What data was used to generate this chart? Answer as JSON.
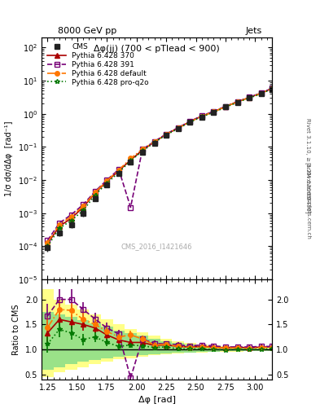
{
  "title_top": "8000 GeV pp",
  "title_right": "Jets",
  "plot_title": "Δφ(jj) (700 < pTlead < 900)",
  "watermark": "CMS_2016_I1421646",
  "xlabel": "Δφ [rad]",
  "ylabel_main": "1/σ dσ/dΔφ  [rad⁻¹]",
  "ylabel_ratio": "Ratio to CMS",
  "ylabel_right": "Rivet 3.1.10, ≥ 3.2M events",
  "arxiv": "[arXiv:1306.3436]",
  "mcplots": "mcplots.cern.ch",
  "xlim": [
    1.2,
    3.14159
  ],
  "ylim_main": [
    1e-05,
    200.0
  ],
  "ylim_ratio": [
    0.4,
    2.4
  ],
  "cms_data": {
    "x": [
      1.25,
      1.35,
      1.45,
      1.55,
      1.65,
      1.75,
      1.85,
      1.95,
      2.05,
      2.15,
      2.25,
      2.35,
      2.45,
      2.55,
      2.65,
      2.75,
      2.85,
      2.95,
      3.05,
      3.14
    ],
    "y": [
      9e-05,
      0.00025,
      0.00045,
      0.001,
      0.0028,
      0.007,
      0.016,
      0.035,
      0.07,
      0.13,
      0.22,
      0.35,
      0.55,
      0.8,
      1.1,
      1.6,
      2.2,
      3.0,
      4.0,
      5.5
    ],
    "yerr": [
      2e-05,
      5e-05,
      0.0001,
      0.0002,
      0.0005,
      0.001,
      0.003,
      0.005,
      0.01,
      0.02,
      0.03,
      0.05,
      0.07,
      0.1,
      0.15,
      0.2,
      0.3,
      0.4,
      0.5,
      0.7
    ],
    "color": "#222222",
    "marker": "s",
    "label": "CMS"
  },
  "py370_data": {
    "x": [
      1.25,
      1.35,
      1.45,
      1.55,
      1.65,
      1.75,
      1.85,
      1.95,
      2.05,
      2.15,
      2.25,
      2.35,
      2.45,
      2.55,
      2.65,
      2.75,
      2.85,
      2.95,
      3.05,
      3.14
    ],
    "y": [
      0.00012,
      0.0004,
      0.0007,
      0.0015,
      0.004,
      0.009,
      0.019,
      0.04,
      0.08,
      0.14,
      0.24,
      0.37,
      0.58,
      0.85,
      1.15,
      1.65,
      2.3,
      3.1,
      4.2,
      5.8
    ],
    "color": "#aa0000",
    "linestyle": "-",
    "marker": "^",
    "label": "Pythia 6.428 370"
  },
  "py391_data": {
    "x": [
      1.25,
      1.35,
      1.45,
      1.55,
      1.65,
      1.75,
      1.85,
      1.95,
      2.05,
      2.15,
      2.25,
      2.35,
      2.45,
      2.55,
      2.65,
      2.75,
      2.85,
      2.95,
      3.05,
      3.14
    ],
    "y": [
      0.00015,
      0.0005,
      0.0009,
      0.0018,
      0.0045,
      0.01,
      0.021,
      0.0015,
      0.085,
      0.145,
      0.245,
      0.38,
      0.59,
      0.87,
      1.18,
      1.68,
      2.32,
      3.15,
      4.25,
      5.85
    ],
    "color": "#770077",
    "linestyle": "--",
    "marker": "s",
    "label": "Pythia 6.428 391"
  },
  "pydef_data": {
    "x": [
      1.25,
      1.35,
      1.45,
      1.55,
      1.65,
      1.75,
      1.85,
      1.95,
      2.05,
      2.15,
      2.25,
      2.35,
      2.45,
      2.55,
      2.65,
      2.75,
      2.85,
      2.95,
      3.05,
      3.14
    ],
    "y": [
      0.00013,
      0.00045,
      0.0008,
      0.0016,
      0.0042,
      0.0095,
      0.02,
      0.045,
      0.085,
      0.142,
      0.242,
      0.372,
      0.572,
      0.842,
      1.14,
      1.64,
      2.27,
      3.07,
      4.15,
      5.7
    ],
    "color": "#ff7700",
    "linestyle": "-.",
    "marker": "o",
    "label": "Pythia 6.428 default"
  },
  "pyq2o_data": {
    "x": [
      1.25,
      1.35,
      1.45,
      1.55,
      1.65,
      1.75,
      1.85,
      1.95,
      2.05,
      2.15,
      2.25,
      2.35,
      2.45,
      2.55,
      2.65,
      2.75,
      2.85,
      2.95,
      3.05,
      3.14
    ],
    "y": [
      0.0001,
      0.00035,
      0.0006,
      0.0012,
      0.0035,
      0.008,
      0.017,
      0.038,
      0.075,
      0.135,
      0.23,
      0.355,
      0.555,
      0.81,
      1.1,
      1.58,
      2.2,
      3.0,
      4.0,
      5.6
    ],
    "color": "#007700",
    "linestyle": ":",
    "marker": "*",
    "label": "Pythia 6.428 pro-q2o"
  },
  "ratio_py370": [
    1.33,
    1.6,
    1.55,
    1.5,
    1.43,
    1.29,
    1.19,
    1.14,
    1.14,
    1.08,
    1.09,
    1.06,
    1.05,
    1.06,
    1.05,
    1.03,
    1.05,
    1.03,
    1.05,
    1.05
  ],
  "ratio_py391": [
    1.67,
    2.0,
    2.0,
    1.8,
    1.61,
    1.43,
    1.31,
    0.43,
    1.21,
    1.12,
    1.11,
    1.09,
    1.07,
    1.09,
    1.07,
    1.05,
    1.05,
    1.05,
    1.06,
    1.06
  ],
  "ratio_pydef": [
    1.44,
    1.8,
    1.78,
    1.6,
    1.5,
    1.36,
    1.25,
    1.29,
    1.21,
    1.09,
    1.1,
    1.06,
    1.04,
    1.05,
    1.04,
    1.03,
    1.03,
    1.02,
    1.04,
    1.04
  ],
  "ratio_pyq2o": [
    1.11,
    1.4,
    1.33,
    1.2,
    1.25,
    1.14,
    1.06,
    1.09,
    1.07,
    1.04,
    1.05,
    1.01,
    1.01,
    1.01,
    1.0,
    0.99,
    1.0,
    1.0,
    1.0,
    1.02
  ],
  "band_x_edges": [
    1.2,
    1.3,
    1.4,
    1.5,
    1.6,
    1.7,
    1.8,
    1.9,
    2.0,
    2.1,
    2.2,
    2.3,
    2.4,
    2.5,
    2.6,
    2.7,
    2.8,
    2.9,
    3.0,
    3.14159
  ],
  "band_yellow_lo": [
    0.45,
    0.55,
    0.6,
    0.65,
    0.7,
    0.75,
    0.8,
    0.83,
    0.86,
    0.88,
    0.9,
    0.92,
    0.93,
    0.94,
    0.95,
    0.96,
    0.96,
    0.97,
    0.97,
    0.98
  ],
  "band_yellow_hi": [
    2.2,
    2.0,
    1.9,
    1.8,
    1.7,
    1.6,
    1.5,
    1.4,
    1.35,
    1.28,
    1.22,
    1.17,
    1.13,
    1.1,
    1.08,
    1.06,
    1.05,
    1.04,
    1.03,
    1.02
  ],
  "band_green_lo": [
    0.6,
    0.65,
    0.7,
    0.75,
    0.79,
    0.83,
    0.86,
    0.87,
    0.89,
    0.9,
    0.92,
    0.93,
    0.94,
    0.95,
    0.96,
    0.97,
    0.97,
    0.97,
    0.97,
    0.98
  ],
  "band_green_hi": [
    1.75,
    1.7,
    1.65,
    1.58,
    1.52,
    1.45,
    1.38,
    1.32,
    1.27,
    1.21,
    1.17,
    1.13,
    1.1,
    1.07,
    1.06,
    1.05,
    1.04,
    1.03,
    1.02,
    1.01
  ],
  "ratio_yerr_py370": [
    0.2,
    0.15,
    0.15,
    0.12,
    0.1,
    0.09,
    0.07,
    0.07,
    0.06,
    0.05,
    0.05,
    0.04,
    0.04,
    0.04,
    0.04,
    0.04,
    0.04,
    0.04,
    0.04,
    0.04
  ],
  "ratio_yerr_py391": [
    0.25,
    0.2,
    0.2,
    0.15,
    0.12,
    0.1,
    0.08,
    0.1,
    0.07,
    0.06,
    0.05,
    0.05,
    0.04,
    0.04,
    0.04,
    0.04,
    0.04,
    0.04,
    0.04,
    0.04
  ],
  "ratio_yerr_pydef": [
    0.2,
    0.18,
    0.17,
    0.13,
    0.11,
    0.09,
    0.08,
    0.08,
    0.06,
    0.05,
    0.05,
    0.04,
    0.04,
    0.04,
    0.04,
    0.03,
    0.03,
    0.03,
    0.03,
    0.03
  ],
  "ratio_yerr_pyq2o": [
    0.18,
    0.16,
    0.14,
    0.11,
    0.1,
    0.08,
    0.06,
    0.06,
    0.05,
    0.05,
    0.04,
    0.04,
    0.03,
    0.03,
    0.03,
    0.03,
    0.03,
    0.03,
    0.03,
    0.03
  ],
  "bg_color": "#ffffff",
  "panel_bg": "#ffffff"
}
